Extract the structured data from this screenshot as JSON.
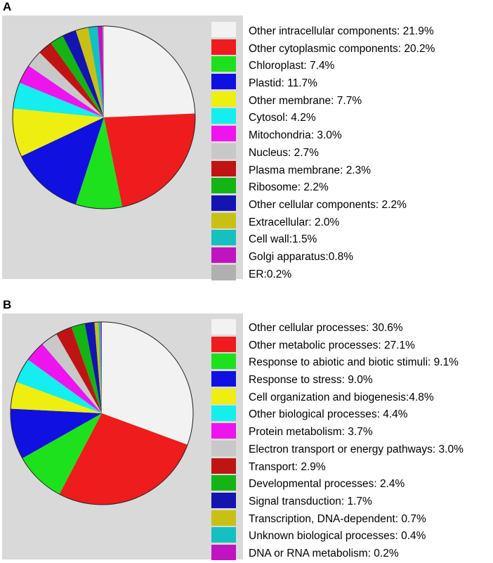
{
  "chart_data": [
    {
      "panel": "A",
      "type": "pie",
      "start_direction": "top, clockwise",
      "slices": [
        {
          "label": "Other intracellular components: 21.9%",
          "value": 21.9,
          "color": "#f2f2f2"
        },
        {
          "label": "Other cytoplasmic components: 20.2%",
          "value": 20.2,
          "color": "#ee1c1c"
        },
        {
          "label": "Chloroplast: 7.4%",
          "value": 7.4,
          "color": "#1ee11e"
        },
        {
          "label": "Plastid: 11.7%",
          "value": 11.7,
          "color": "#1010e0"
        },
        {
          "label": "Other membrane: 7.7%",
          "value": 7.7,
          "color": "#eeee10"
        },
        {
          "label": "Cytosol: 4.2%",
          "value": 4.2,
          "color": "#14eeee"
        },
        {
          "label": "Mitochondria: 3.0%",
          "value": 3.0,
          "color": "#ee14ee"
        },
        {
          "label": "Nucleus: 2.7%",
          "value": 2.7,
          "color": "#c8c8c8"
        },
        {
          "label": "Plasma membrane: 2.3%",
          "value": 2.3,
          "color": "#c01414"
        },
        {
          "label": "Ribosome: 2.2%",
          "value": 2.2,
          "color": "#14b414"
        },
        {
          "label": "Other cellular components: 2.2%",
          "value": 2.2,
          "color": "#1414b0"
        },
        {
          "label": "Extracellular: 2.0%",
          "value": 2.0,
          "color": "#c8c014"
        },
        {
          "label": "Cell wall:1.5%",
          "value": 1.5,
          "color": "#14c0c0"
        },
        {
          "label": "Golgi apparatus:0.8%",
          "value": 0.8,
          "color": "#c014c0"
        },
        {
          "label": "ER:0.2%",
          "value": 0.2,
          "color": "#b0b0b0"
        }
      ]
    },
    {
      "panel": "B",
      "type": "pie",
      "start_direction": "top, clockwise",
      "slices": [
        {
          "label": "Other cellular processes: 30.6%",
          "value": 30.6,
          "color": "#f2f2f2"
        },
        {
          "label": "Other metabolic processes: 27.1%",
          "value": 27.1,
          "color": "#ee1c1c"
        },
        {
          "label": "Response to abiotic and biotic stimuli: 9.1%",
          "value": 9.1,
          "color": "#1ee11e"
        },
        {
          "label": "Response to stress: 9.0%",
          "value": 9.0,
          "color": "#1010e0"
        },
        {
          "label": "Cell organization and biogenesis:4.8%",
          "value": 4.8,
          "color": "#eeee10"
        },
        {
          "label": "Other biological processes: 4.4%",
          "value": 4.4,
          "color": "#14eeee"
        },
        {
          "label": "Protein metabolism: 3.7%",
          "value": 3.7,
          "color": "#ee14ee"
        },
        {
          "label": "Electron transport or energy pathways: 3.0%",
          "value": 3.0,
          "color": "#c8c8c8"
        },
        {
          "label": "Transport: 2.9%",
          "value": 2.9,
          "color": "#c01414"
        },
        {
          "label": "Developmental processes: 2.4%",
          "value": 2.4,
          "color": "#14b414"
        },
        {
          "label": "Signal transduction: 1.7%",
          "value": 1.7,
          "color": "#1414b0"
        },
        {
          "label": "Transcription, DNA-dependent: 0.7%",
          "value": 0.7,
          "color": "#c8c014"
        },
        {
          "label": "Unknown biological processes: 0.4%",
          "value": 0.4,
          "color": "#14c0c0"
        },
        {
          "label": "DNA or RNA metabolism: 0.2%",
          "value": 0.2,
          "color": "#c014c0"
        }
      ]
    }
  ]
}
